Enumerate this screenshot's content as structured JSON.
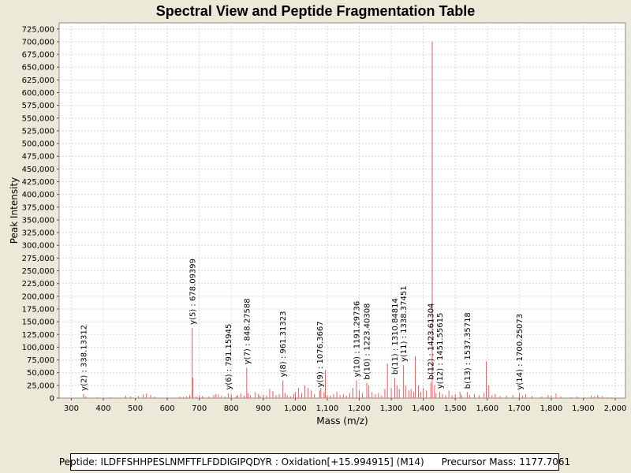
{
  "chart_data": {
    "type": "bar",
    "title": "Spectral View and Peptide Fragmentation Table",
    "xlabel": "Mass (m/z)",
    "ylabel": "Peak Intensity",
    "xlim": [
      262,
      2032
    ],
    "ylim": [
      0,
      737000
    ],
    "x_ticks": [
      300,
      400,
      500,
      600,
      700,
      800,
      900,
      1000,
      1100,
      1200,
      1300,
      1400,
      1500,
      1600,
      1700,
      1800,
      1900,
      2000
    ],
    "x_tick_labels": [
      "300",
      "400",
      "500",
      "600",
      "700",
      "800",
      "900",
      "1,000",
      "1,100",
      "1,200",
      "1,300",
      "1,400",
      "1,500",
      "1,600",
      "1,700",
      "1,800",
      "1,900",
      "2,000"
    ],
    "y_ticks": [
      0,
      25000,
      50000,
      75000,
      100000,
      125000,
      150000,
      175000,
      200000,
      225000,
      250000,
      275000,
      300000,
      325000,
      350000,
      375000,
      400000,
      425000,
      450000,
      475000,
      500000,
      525000,
      550000,
      575000,
      600000,
      625000,
      650000,
      675000,
      700000,
      725000
    ],
    "y_tick_labels": [
      "0",
      "25,000",
      "50,000",
      "75,000",
      "100,000",
      "125,000",
      "150,000",
      "175,000",
      "200,000",
      "225,000",
      "250,000",
      "275,000",
      "300,000",
      "325,000",
      "350,000",
      "375,000",
      "400,000",
      "425,000",
      "450,000",
      "475,000",
      "500,000",
      "525,000",
      "550,000",
      "575,000",
      "600,000",
      "625,000",
      "650,000",
      "675,000",
      "700,000",
      "725,000"
    ],
    "grid": true,
    "series": [
      {
        "name": "peaks",
        "color": "#ff5555",
        "peaks": [
          [
            338.13,
            8000
          ],
          [
            345,
            3000
          ],
          [
            380,
            2000
          ],
          [
            420,
            1500
          ],
          [
            470,
            5000
          ],
          [
            485,
            3000
          ],
          [
            510,
            4000
          ],
          [
            525,
            7000
          ],
          [
            535,
            9000
          ],
          [
            548,
            6000
          ],
          [
            560,
            3000
          ],
          [
            600,
            2000
          ],
          [
            640,
            3000
          ],
          [
            650,
            2500
          ],
          [
            660,
            4000
          ],
          [
            670,
            6000
          ],
          [
            678.09,
            138000
          ],
          [
            680,
            40000
          ],
          [
            690,
            3000
          ],
          [
            700,
            5000
          ],
          [
            710,
            4000
          ],
          [
            730,
            3000
          ],
          [
            745,
            6000
          ],
          [
            752,
            8000
          ],
          [
            760,
            7000
          ],
          [
            770,
            5000
          ],
          [
            780,
            3000
          ],
          [
            791.16,
            10000
          ],
          [
            800,
            8000
          ],
          [
            815,
            4000
          ],
          [
            820,
            6000
          ],
          [
            830,
            9000
          ],
          [
            840,
            5000
          ],
          [
            848.28,
            60000
          ],
          [
            852,
            10000
          ],
          [
            860,
            6000
          ],
          [
            875,
            12000
          ],
          [
            885,
            8000
          ],
          [
            890,
            5000
          ],
          [
            900,
            7000
          ],
          [
            910,
            5000
          ],
          [
            920,
            18000
          ],
          [
            930,
            14000
          ],
          [
            940,
            6000
          ],
          [
            950,
            8000
          ],
          [
            961.31,
            35000
          ],
          [
            968,
            10000
          ],
          [
            975,
            6000
          ],
          [
            985,
            4000
          ],
          [
            995,
            8000
          ],
          [
            1000,
            12000
          ],
          [
            1010,
            20000
          ],
          [
            1020,
            10000
          ],
          [
            1030,
            25000
          ],
          [
            1040,
            20000
          ],
          [
            1050,
            15000
          ],
          [
            1060,
            8000
          ],
          [
            1076.37,
            15000
          ],
          [
            1080,
            20000
          ],
          [
            1090,
            12000
          ],
          [
            1094,
            55000
          ],
          [
            1100,
            6000
          ],
          [
            1110,
            5000
          ],
          [
            1120,
            8000
          ],
          [
            1130,
            12000
          ],
          [
            1140,
            6000
          ],
          [
            1150,
            8000
          ],
          [
            1160,
            5000
          ],
          [
            1170,
            10000
          ],
          [
            1180,
            20000
          ],
          [
            1191.3,
            35000
          ],
          [
            1200,
            15000
          ],
          [
            1210,
            10000
          ],
          [
            1223.4,
            30000
          ],
          [
            1230,
            25000
          ],
          [
            1240,
            12000
          ],
          [
            1250,
            8000
          ],
          [
            1260,
            10000
          ],
          [
            1270,
            5000
          ],
          [
            1280,
            18000
          ],
          [
            1288,
            68000
          ],
          [
            1300,
            20000
          ],
          [
            1310.85,
            40000
          ],
          [
            1318,
            25000
          ],
          [
            1325,
            18000
          ],
          [
            1338.37,
            65000
          ],
          [
            1345,
            25000
          ],
          [
            1355,
            15000
          ],
          [
            1362,
            18000
          ],
          [
            1370,
            12000
          ],
          [
            1375,
            82000
          ],
          [
            1385,
            25000
          ],
          [
            1392,
            12000
          ],
          [
            1400,
            20000
          ],
          [
            1410,
            15000
          ],
          [
            1423.61,
            30000
          ],
          [
            1428,
            700000
          ],
          [
            1435,
            25000
          ],
          [
            1440,
            10000
          ],
          [
            1451.56,
            12000
          ],
          [
            1460,
            8000
          ],
          [
            1470,
            6000
          ],
          [
            1480,
            15000
          ],
          [
            1490,
            6000
          ],
          [
            1500,
            8000
          ],
          [
            1515,
            12000
          ],
          [
            1520,
            6000
          ],
          [
            1537.36,
            12000
          ],
          [
            1545,
            6000
          ],
          [
            1560,
            8000
          ],
          [
            1575,
            6000
          ],
          [
            1590,
            10000
          ],
          [
            1597,
            72000
          ],
          [
            1605,
            25000
          ],
          [
            1615,
            6000
          ],
          [
            1625,
            8000
          ],
          [
            1640,
            4000
          ],
          [
            1660,
            5000
          ],
          [
            1680,
            6000
          ],
          [
            1700.25,
            10000
          ],
          [
            1710,
            5000
          ],
          [
            1720,
            8000
          ],
          [
            1740,
            4000
          ],
          [
            1770,
            3000
          ],
          [
            1790,
            6000
          ],
          [
            1800,
            5000
          ],
          [
            1815,
            9000
          ],
          [
            1830,
            3000
          ],
          [
            1860,
            2000
          ],
          [
            1880,
            3000
          ],
          [
            1905,
            2000
          ],
          [
            1925,
            5000
          ],
          [
            1935,
            3000
          ],
          [
            1945,
            6000
          ],
          [
            1950,
            2000
          ],
          [
            1960,
            4000
          ],
          [
            1975,
            2000
          ],
          [
            1990,
            1500
          ]
        ]
      }
    ],
    "annotations": [
      {
        "mass": 338.13312,
        "label": "y(2) : 338.13312"
      },
      {
        "mass": 678.09399,
        "label": "y(5) : 678.09399"
      },
      {
        "mass": 791.15945,
        "label": "y(6) : 791.15945"
      },
      {
        "mass": 848.27588,
        "label": "y(7) : 848.27588"
      },
      {
        "mass": 961.31323,
        "label": "y(8) : 961.31323"
      },
      {
        "mass": 1076.3667,
        "label": "y(9) : 1076.3667"
      },
      {
        "mass": 1191.29736,
        "label": "y(10) : 1191.29736"
      },
      {
        "mass": 1223.40308,
        "label": "b(10) : 1223.40308"
      },
      {
        "mass": 1310.84814,
        "label": "b(11) : 1310.84814"
      },
      {
        "mass": 1338.37451,
        "label": "y(11) : 1338.37451"
      },
      {
        "mass": 1423.61304,
        "label": "b(12) : 1423.61304"
      },
      {
        "mass": 1451.55615,
        "label": "y(12) : 1451.55615"
      },
      {
        "mass": 1537.35718,
        "label": "b(13) : 1537.35718"
      },
      {
        "mass": 1700.25073,
        "label": "y(14) : 1700.25073"
      }
    ]
  },
  "footer": {
    "peptide": "Peptide: ILDFFSHHPESLNMFTFLFDDIGIPQDYR : Oxidation[+15.994915] (M14)",
    "precursor": "Precursor Mass: 1177.7061"
  }
}
